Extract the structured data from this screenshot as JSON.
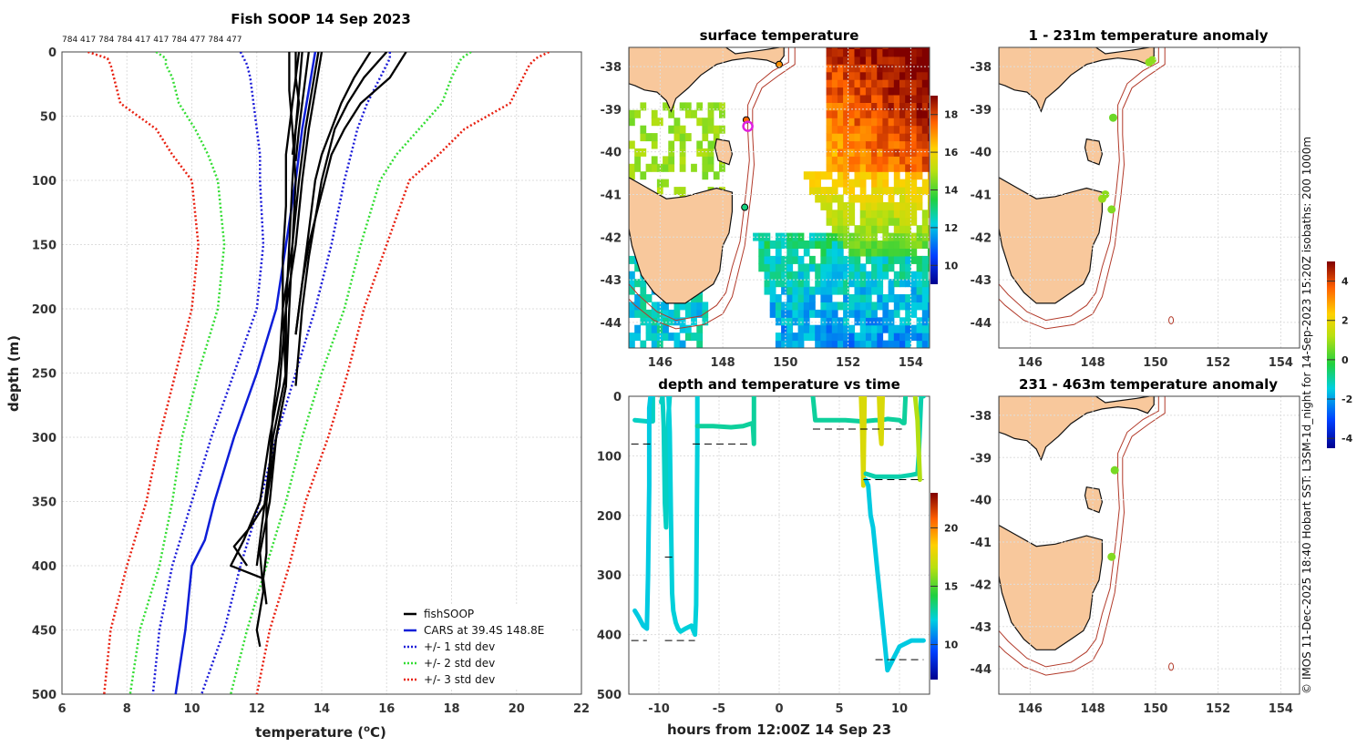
{
  "colors": {
    "land": "#f8c89c",
    "coast": "#111111",
    "isobath": "#b23a2a",
    "grid": "#dddddd",
    "axis": "#444444",
    "obs": "#000000",
    "cars": "#0d1ed8",
    "std1": "#1a1ad8",
    "std2": "#33dd33",
    "std3": "#e82010"
  },
  "chart_data": [
    {
      "id": "profile",
      "type": "line",
      "title": "Fish SOOP 14 Sep 2023",
      "subtitle_counts": "784 417 784 784 417 417 784 477 784 477",
      "xlabel": "temperature (°C)",
      "xlabel_main": "temperature (",
      "xlabel_sup": "o",
      "xlabel_end": "C)",
      "ylabel": "depth (m)",
      "xlim": [
        6,
        22
      ],
      "ylim": [
        0,
        500
      ],
      "xticks": [
        6,
        8,
        10,
        12,
        14,
        16,
        18,
        20,
        22
      ],
      "yticks": [
        0,
        50,
        100,
        150,
        200,
        250,
        300,
        350,
        400,
        450,
        500
      ],
      "legend_position": "bottom-right",
      "legend": [
        "fishSOOP",
        "CARS at 39.4S 148.8E",
        "+/- 1 std dev",
        "+/- 2 std dev",
        "+/- 3 std dev"
      ],
      "series": [
        {
          "name": "CARS",
          "depth": [
            0,
            30,
            60,
            100,
            150,
            200,
            250,
            300,
            350,
            380,
            400,
            450,
            500
          ],
          "temp": [
            13.8,
            13.6,
            13.4,
            13.2,
            12.9,
            12.6,
            12.0,
            11.3,
            10.7,
            10.4,
            10.0,
            9.8,
            9.5
          ]
        },
        {
          "name": "+1 std",
          "depth": [
            0,
            5,
            10,
            20,
            40,
            60,
            80,
            100,
            150,
            200,
            250,
            300,
            350,
            400,
            450,
            500
          ],
          "temp": [
            16.1,
            16.1,
            16.0,
            15.8,
            15.4,
            15.1,
            14.9,
            14.7,
            14.3,
            13.8,
            13.2,
            12.6,
            12.1,
            11.5,
            11.0,
            10.3
          ]
        },
        {
          "name": "-1 std",
          "depth": [
            0,
            5,
            10,
            20,
            40,
            60,
            80,
            100,
            150,
            200,
            250,
            300,
            350,
            400,
            450,
            500
          ],
          "temp": [
            11.5,
            11.6,
            11.7,
            11.8,
            11.9,
            12.0,
            12.1,
            12.1,
            12.2,
            12.0,
            11.3,
            10.6,
            10.0,
            9.4,
            9.0,
            8.8
          ]
        },
        {
          "name": "+2 std",
          "depth": [
            0,
            5,
            10,
            20,
            40,
            60,
            80,
            100,
            150,
            200,
            250,
            300,
            350,
            400,
            450,
            500
          ],
          "temp": [
            18.6,
            18.3,
            18.2,
            18.0,
            17.7,
            17.0,
            16.3,
            15.8,
            15.2,
            14.7,
            14.0,
            13.4,
            12.9,
            12.3,
            11.7,
            11.2
          ]
        },
        {
          "name": "-2 std",
          "depth": [
            0,
            5,
            10,
            20,
            40,
            60,
            80,
            100,
            150,
            200,
            250,
            300,
            350,
            400,
            450,
            500
          ],
          "temp": [
            8.9,
            9.2,
            9.2,
            9.4,
            9.6,
            10.1,
            10.5,
            10.8,
            11.0,
            10.8,
            10.2,
            9.7,
            9.4,
            9.0,
            8.4,
            8.1
          ]
        },
        {
          "name": "+3 std",
          "depth": [
            0,
            5,
            10,
            20,
            40,
            60,
            80,
            100,
            150,
            200,
            250,
            300,
            350,
            400,
            450,
            500
          ],
          "temp": [
            21.0,
            20.6,
            20.4,
            20.2,
            19.8,
            18.4,
            17.6,
            16.7,
            16.0,
            15.3,
            14.8,
            14.2,
            13.5,
            13.0,
            12.4,
            12.0
          ]
        },
        {
          "name": "-3 std",
          "depth": [
            0,
            5,
            10,
            20,
            40,
            60,
            80,
            100,
            150,
            200,
            250,
            300,
            350,
            400,
            450,
            500
          ],
          "temp": [
            6.8,
            7.4,
            7.5,
            7.6,
            7.8,
            8.9,
            9.4,
            10.0,
            10.2,
            10.0,
            9.5,
            9.0,
            8.6,
            8.0,
            7.5,
            7.3
          ]
        }
      ],
      "casts": [
        {
          "depth": [
            0,
            20,
            40,
            60,
            85
          ],
          "temp": [
            13.6,
            13.5,
            13.4,
            13.3,
            13.2
          ]
        },
        {
          "depth": [
            0,
            20,
            40,
            60,
            80
          ],
          "temp": [
            13.2,
            13.2,
            13.3,
            13.2,
            13.1
          ]
        },
        {
          "depth": [
            0,
            30,
            60,
            100,
            150,
            200,
            250,
            300,
            350,
            370,
            385,
            400
          ],
          "temp": [
            13.4,
            13.3,
            13.2,
            13.1,
            13.0,
            12.9,
            12.9,
            12.5,
            12.3,
            11.8,
            11.3,
            11.7
          ]
        },
        {
          "depth": [
            0,
            30,
            60,
            100,
            150,
            200,
            260,
            300,
            350,
            380,
            400,
            410
          ],
          "temp": [
            14.0,
            13.8,
            13.6,
            13.4,
            13.2,
            12.9,
            12.7,
            12.4,
            12.1,
            11.6,
            11.2,
            12.2
          ]
        },
        {
          "depth": [
            0,
            20,
            40,
            60,
            80,
            100,
            140,
            180,
            200,
            220
          ],
          "temp": [
            15.5,
            15.0,
            14.6,
            14.3,
            14.0,
            13.8,
            13.6,
            13.4,
            13.3,
            13.2
          ]
        },
        {
          "depth": [
            0,
            20,
            40,
            60,
            80,
            100,
            130,
            160,
            200,
            230,
            260
          ],
          "temp": [
            16.0,
            15.3,
            14.8,
            14.4,
            14.2,
            14.0,
            13.8,
            13.6,
            13.4,
            13.3,
            13.2
          ]
        },
        {
          "depth": [
            0,
            20,
            40,
            60,
            80,
            100,
            120,
            150,
            180,
            220
          ],
          "temp": [
            16.6,
            16.1,
            15.2,
            14.7,
            14.3,
            14.1,
            13.9,
            13.6,
            13.4,
            13.2
          ]
        },
        {
          "depth": [
            0,
            30,
            60,
            100,
            150,
            200,
            260,
            300,
            350,
            390,
            420,
            450,
            463
          ],
          "temp": [
            13.0,
            13.0,
            13.1,
            13.2,
            13.1,
            13.0,
            12.9,
            12.6,
            12.4,
            12.1,
            12.2,
            12.0,
            12.1
          ]
        },
        {
          "depth": [
            0,
            30,
            60,
            100,
            150,
            200,
            260,
            300,
            350,
            390,
            410,
            430
          ],
          "temp": [
            13.9,
            13.7,
            13.5,
            13.3,
            13.1,
            12.8,
            12.9,
            12.6,
            12.3,
            12.3,
            12.2,
            12.3
          ]
        },
        {
          "depth": [
            0,
            40,
            80,
            120,
            160,
            200,
            240,
            280,
            320,
            360,
            400
          ],
          "temp": [
            13.3,
            13.1,
            12.9,
            12.9,
            12.8,
            12.8,
            12.7,
            12.5,
            12.4,
            12.2,
            12.0
          ]
        }
      ]
    },
    {
      "id": "timeseries",
      "type": "scatter",
      "title": "depth and temperature vs time",
      "xlabel": "hours from 12:00Z 14 Sep 23",
      "xlim": [
        -12.5,
        12.5
      ],
      "ylim": [
        0,
        500
      ],
      "xticks": [
        -10,
        -5,
        0,
        5,
        10
      ],
      "yticks": [
        0,
        100,
        200,
        300,
        400,
        500
      ],
      "colorbar_ticks": [
        10,
        15,
        20
      ],
      "colorbar_range": [
        7,
        23
      ],
      "segments": [
        {
          "t": [
            -12.0,
            -11.0,
            -10.5,
            -10.5
          ],
          "d": [
            40,
            42,
            42,
            0
          ],
          "c": 12.5
        },
        {
          "t": [
            -12.0,
            -11.7,
            -11.3,
            -11.0,
            -10.9,
            -10.8,
            -10.8,
            -10.7,
            -10.6
          ],
          "d": [
            360,
            370,
            385,
            390,
            300,
            150,
            20,
            0,
            0
          ],
          "c": 12.0
        },
        {
          "t": [
            -9.8,
            -9.7,
            -9.6,
            -9.5,
            -9.4,
            -9.3,
            -9.2,
            -9.1
          ],
          "d": [
            10,
            0,
            50,
            180,
            220,
            150,
            30,
            0
          ],
          "c": 12.5
        },
        {
          "t": [
            -9.2,
            -9.1,
            -9.0,
            -8.9,
            -8.8,
            -8.6,
            -8.4,
            -8.2,
            -7.8,
            -7.3,
            -7.0,
            -6.9,
            -6.8,
            -6.8
          ],
          "d": [
            0,
            60,
            200,
            330,
            360,
            380,
            390,
            395,
            390,
            385,
            400,
            350,
            80,
            0
          ],
          "c": 12.2
        },
        {
          "t": [
            -6.8,
            -5.5,
            -4.0,
            -3.0,
            -2.2,
            -2.1,
            -2.1
          ],
          "d": [
            50,
            50,
            52,
            50,
            45,
            80,
            0
          ],
          "c": 13.0
        },
        {
          "t": [
            2.8,
            3.0,
            4.0,
            5.5,
            6.8,
            7.0,
            8.0,
            8.5,
            9.0,
            10.0,
            10.3,
            10.4,
            10.5
          ],
          "d": [
            0,
            40,
            40,
            40,
            42,
            42,
            40,
            40,
            38,
            40,
            45,
            45,
            0
          ],
          "c": 13.0
        },
        {
          "t": [
            6.8,
            6.9,
            7.0,
            7.1
          ],
          "d": [
            0,
            60,
            150,
            0
          ],
          "c": 17.5
        },
        {
          "t": [
            7.2,
            7.4,
            7.6,
            7.8,
            8.2,
            8.5,
            8.8,
            9.0,
            10.0,
            11.0,
            11.6,
            12.0
          ],
          "d": [
            140,
            150,
            200,
            220,
            300,
            360,
            420,
            460,
            420,
            410,
            410,
            410
          ],
          "c": 12.0
        },
        {
          "t": [
            8.3,
            8.4,
            8.5,
            8.6
          ],
          "d": [
            0,
            60,
            80,
            0
          ],
          "c": 17.5
        },
        {
          "t": [
            7.2,
            8.0,
            9.0,
            10.0,
            11.0,
            11.5,
            11.6,
            11.8,
            12.0
          ],
          "d": [
            130,
            135,
            135,
            135,
            132,
            130,
            100,
            0,
            0
          ],
          "c": 12.8
        },
        {
          "t": [
            11.3,
            11.5,
            11.7
          ],
          "d": [
            0,
            40,
            140
          ],
          "c": 16.5
        }
      ],
      "depth_markers": [
        {
          "t0": -12.3,
          "t1": -10.3,
          "d": 80
        },
        {
          "t0": -7.2,
          "t1": -2.5,
          "d": 80
        },
        {
          "t0": 2.8,
          "t1": 10.2,
          "d": 55
        },
        {
          "t0": 7.0,
          "t1": 12.0,
          "d": 140
        },
        {
          "t0": -12.3,
          "t1": -11.0,
          "d": 410
        },
        {
          "t0": -9.5,
          "t1": -7.0,
          "d": 410
        },
        {
          "t0": -9.5,
          "t1": -8.8,
          "d": 270
        },
        {
          "t0": 8.0,
          "t1": 12.0,
          "d": 442
        }
      ]
    },
    {
      "id": "sst",
      "type": "heatmap",
      "title": "surface temperature",
      "lon_range": [
        145,
        154.5
      ],
      "lat_range": [
        -44.6,
        -37.5
      ],
      "xticks": [
        146,
        148,
        150,
        152,
        154
      ],
      "yticks": [
        -38,
        -39,
        -40,
        -41,
        -42,
        -43,
        -44
      ],
      "colorbar_ticks": [
        10,
        12,
        14,
        16,
        18
      ],
      "colorbar_range": [
        9,
        19
      ],
      "stations": [
        {
          "lon": 149.8,
          "lat": -37.95,
          "c": 17.0
        },
        {
          "lon": 148.75,
          "lat": -39.25,
          "c": 17.5
        },
        {
          "lon": 148.8,
          "lat": -39.4,
          "c": 99
        },
        {
          "lon": 148.7,
          "lat": -41.3,
          "c": 13.0
        }
      ]
    },
    {
      "id": "anom1",
      "type": "scatter",
      "title": "1 - 231m temperature anomaly",
      "xticks": [
        146,
        148,
        150,
        152,
        154
      ],
      "yticks": [
        -38,
        -39,
        -40,
        -41,
        -42,
        -43,
        -44
      ],
      "points": [
        {
          "lon": 149.8,
          "lat": -37.9,
          "c": 0.8
        },
        {
          "lon": 149.9,
          "lat": -37.85,
          "c": 0.8
        },
        {
          "lon": 148.65,
          "lat": -39.2,
          "c": 0.5
        },
        {
          "lon": 148.3,
          "lat": -41.1,
          "c": 0.9
        },
        {
          "lon": 148.4,
          "lat": -41.0,
          "c": 0.8
        },
        {
          "lon": 148.6,
          "lat": -41.35,
          "c": 0.7
        }
      ]
    },
    {
      "id": "anom2",
      "type": "scatter",
      "title": "231 - 463m temperature anomaly",
      "xticks": [
        146,
        148,
        150,
        152,
        154
      ],
      "yticks": [
        -38,
        -39,
        -40,
        -41,
        -42,
        -43,
        -44
      ],
      "points": [
        {
          "lon": 148.7,
          "lat": -39.3,
          "c": 0.6
        },
        {
          "lon": 148.6,
          "lat": -41.35,
          "c": 0.7
        }
      ]
    }
  ],
  "anomaly_colorbar": {
    "ticks": [
      4,
      2,
      0,
      -2,
      -4
    ],
    "range": [
      -4.5,
      5
    ]
  },
  "side_caption": "© IMOS 11-Dec-2025 18:40 Hobart SST: L3SM-1d_night for 14-Sep-2023 15:20Z isobaths: 200  1000m"
}
